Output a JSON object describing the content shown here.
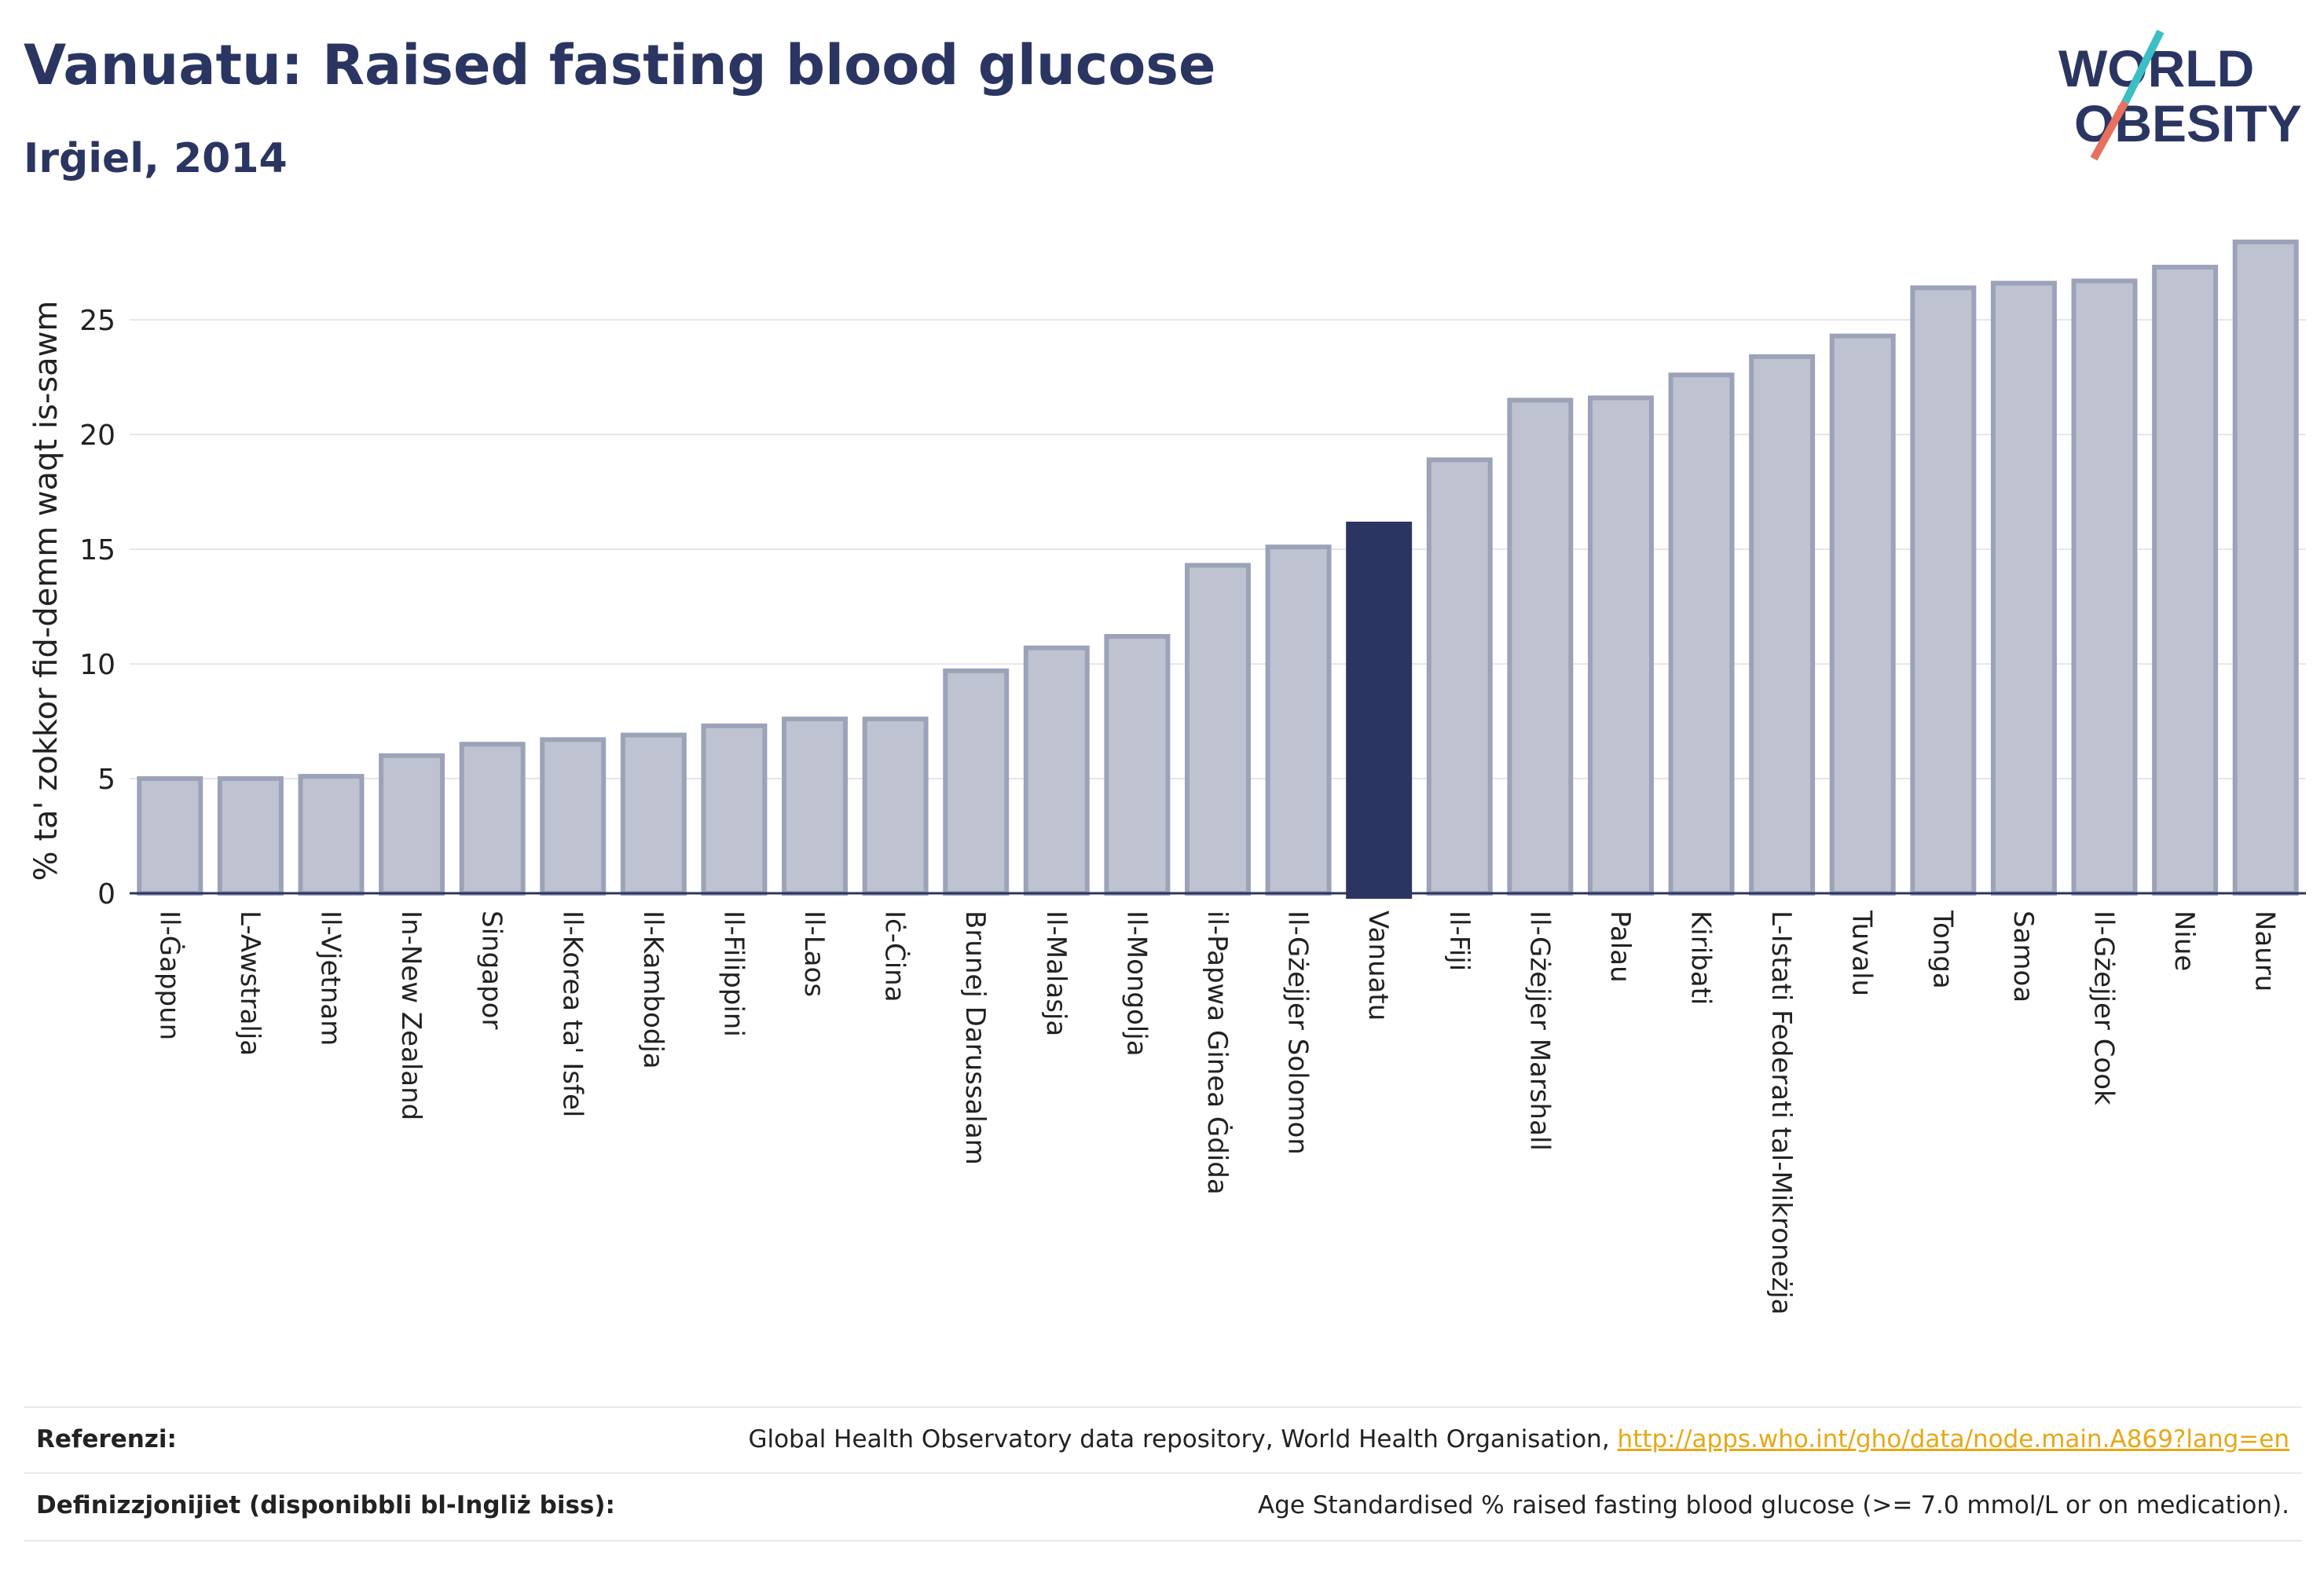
{
  "header": {
    "title": "Vanuatu: Raised fasting blood glucose",
    "subtitle": "Irġiel, 2014"
  },
  "logo": {
    "line1": "WORLD",
    "line2": "OBESITY",
    "accent_teal": "#3bbfc4",
    "accent_coral": "#e8705f"
  },
  "colors": {
    "bar": "#bfc3d1",
    "bar_stroke": "#9ca2b8",
    "highlight": "#2b3562",
    "text": "#2b3562"
  },
  "chart_data": {
    "type": "bar",
    "title": "Vanuatu: Raised fasting blood glucose",
    "subtitle": "Irġiel, 2014",
    "xlabel": "",
    "ylabel": "% ta' zokkor fid-demm waqt is-sawm",
    "ylim": [
      0,
      28.5
    ],
    "yticks": [
      0,
      5,
      10,
      15,
      20,
      25
    ],
    "grid": true,
    "highlight": "Vanuatu",
    "categories": [
      "Il-Ġappun",
      "L-Awstralja",
      "Il-Vjetnam",
      "In-New Zealand",
      "Singapor",
      "Il-Korea ta' Isfel",
      "Il-Kambodja",
      "Il-Filippini",
      "Il-Laos",
      "Iċ-Ċina",
      "Brunej Darussalam",
      "Il-Malasja",
      "Il-Mongolja",
      "il-Papwa Ginea Ġdida",
      "Il-Gżejjer Solomon",
      "Vanuatu",
      "Il-Fiji",
      "Il-Gżejjer Marshall",
      "Palau",
      "Kiribati",
      "L-Istati Federati tal-Mikroneżja",
      "Tuvalu",
      "Tonga",
      "Samoa",
      "Il-Gżejjer Cook",
      "Niue",
      "Nauru"
    ],
    "values": [
      5.0,
      5.0,
      5.1,
      6.0,
      6.5,
      6.7,
      6.9,
      7.3,
      7.6,
      7.6,
      9.7,
      10.7,
      11.2,
      14.3,
      15.1,
      16.1,
      18.9,
      21.5,
      21.6,
      22.6,
      23.4,
      24.3,
      26.4,
      26.6,
      26.7,
      27.3,
      28.4
    ]
  },
  "footer": {
    "references_label": "Referenzi:",
    "references_text": "Global Health Observatory data repository, World Health Organisation, ",
    "references_link": "http://apps.who.int/gho/data/node.main.A869?lang=en",
    "definitions_label": "Definizzjonijiet (disponibbli bl-Ingliż biss):",
    "definitions_text": "Age Standardised % raised fasting blood glucose (>= 7.0 mmol/L or on medication)."
  }
}
